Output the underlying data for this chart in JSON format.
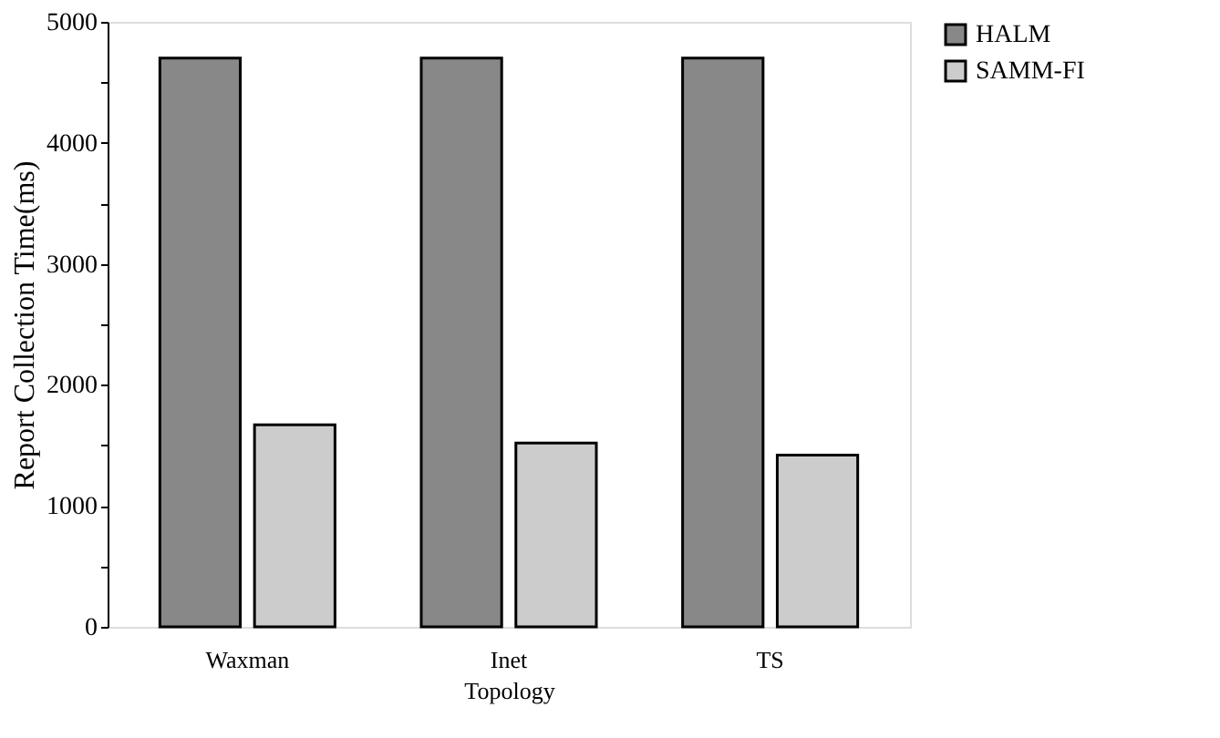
{
  "chart_data": {
    "type": "bar",
    "xlabel": "Topology",
    "ylabel": "Report Collection Time(ms)",
    "categories": [
      "Waxman",
      "Inet",
      "TS"
    ],
    "series": [
      {
        "name": "HALM",
        "color": "#888888",
        "values": [
          4700,
          4700,
          4700
        ]
      },
      {
        "name": "SAMM-FI",
        "color": "#cccccc",
        "values": [
          1670,
          1520,
          1420
        ]
      }
    ],
    "ylim": [
      0,
      5000
    ],
    "yticks": [
      0,
      {
        "value": 500,
        "label": null
      },
      1000,
      {
        "value": 1500,
        "label": null
      },
      2000,
      {
        "value": 2500,
        "label": null
      },
      3000,
      {
        "value": 3500,
        "label": null
      },
      4000,
      {
        "value": 4500,
        "label": null
      },
      5000
    ],
    "grid": false,
    "legend": "right"
  }
}
